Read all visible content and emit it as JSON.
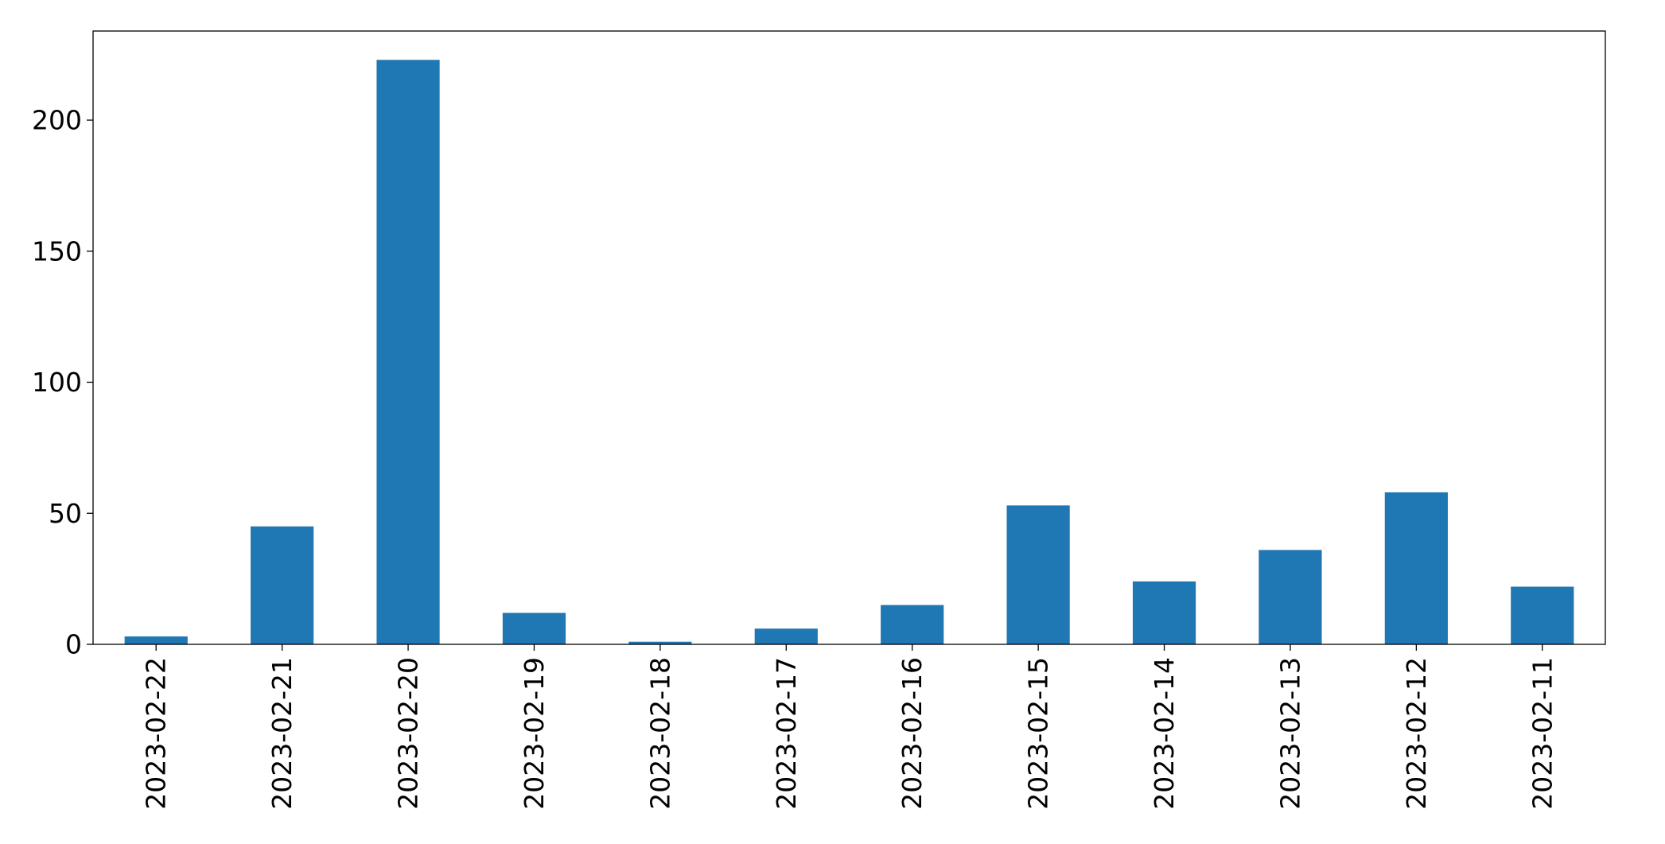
{
  "chart_data": {
    "type": "bar",
    "title": "",
    "xlabel": "",
    "ylabel": "",
    "categories": [
      "2023-02-22",
      "2023-02-21",
      "2023-02-20",
      "2023-02-19",
      "2023-02-18",
      "2023-02-17",
      "2023-02-16",
      "2023-02-15",
      "2023-02-14",
      "2023-02-13",
      "2023-02-12",
      "2023-02-11"
    ],
    "values": [
      3,
      45,
      223,
      12,
      1,
      6,
      15,
      53,
      24,
      36,
      58,
      22
    ],
    "ylim": [
      0,
      234
    ],
    "yticks": [
      0,
      50,
      100,
      150,
      200
    ],
    "bar_color": "#1f77b4",
    "grid": false,
    "legend": "none"
  }
}
